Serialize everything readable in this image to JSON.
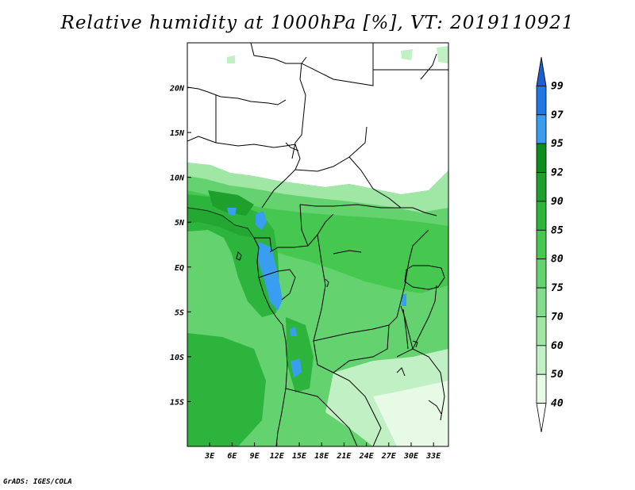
{
  "title": "Relative humidity at 1000hPa [%], VT: 2019110921",
  "credit": "GrADS: IGES/COLA",
  "map": {
    "lon_range": [
      0,
      35
    ],
    "lat_range": [
      -20,
      25
    ],
    "x_ticks": [
      "3E",
      "6E",
      "9E",
      "12E",
      "15E",
      "18E",
      "21E",
      "24E",
      "27E",
      "30E",
      "33E"
    ],
    "x_tick_values": [
      3,
      6,
      9,
      12,
      15,
      18,
      21,
      24,
      27,
      30,
      33
    ],
    "y_ticks": [
      "20N",
      "15N",
      "10N",
      "5N",
      "EQ",
      "5S",
      "10S",
      "15S"
    ],
    "y_tick_values": [
      20,
      15,
      10,
      5,
      0,
      -5,
      -10,
      -15
    ]
  },
  "colorbar": {
    "levels": [
      "99",
      "97",
      "95",
      "92",
      "90",
      "85",
      "80",
      "75",
      "70",
      "60",
      "50",
      "40"
    ],
    "colors": [
      "#1e5fd0",
      "#1e78e6",
      "#3a9ef0",
      "#0e8c1e",
      "#1fa02d",
      "#2db43c",
      "#46c850",
      "#64d26e",
      "#82dc8c",
      "#a0e6a5",
      "#c0f0c3",
      "#e6fae6",
      "#ffffff"
    ]
  },
  "legend_colors": {
    "ocean_base": "#46c850",
    "land_dry": "#ffffff",
    "moist_band": "#2db43c",
    "very_moist": "#1fa02d",
    "saturated": "#3a9ef0"
  }
}
